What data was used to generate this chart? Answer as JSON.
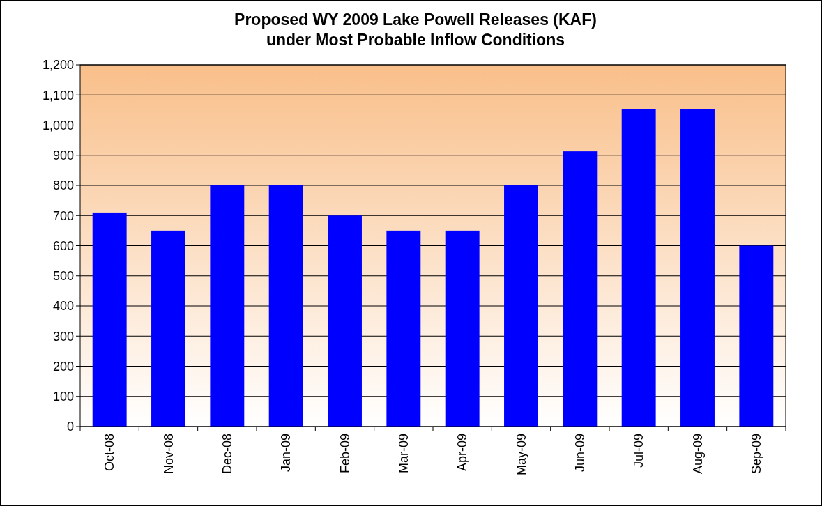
{
  "chart_data": {
    "type": "bar",
    "title": "Proposed WY 2009 Lake Powell Releases (KAF)\nunder Most Probable Inflow Conditions",
    "categories": [
      "Oct-08",
      "Nov-08",
      "Dec-08",
      "Jan-09",
      "Feb-09",
      "Mar-09",
      "Apr-09",
      "May-09",
      "Jun-09",
      "Jul-09",
      "Aug-09",
      "Sep-09"
    ],
    "values": [
      710,
      650,
      800,
      800,
      700,
      650,
      650,
      800,
      913,
      1053,
      1053,
      600
    ],
    "color": "#0000ff",
    "ylim": [
      0,
      1200
    ],
    "yticks": [
      0,
      100,
      200,
      300,
      400,
      500,
      600,
      700,
      800,
      900,
      {
        "value": 1000,
        "label": "1,000"
      },
      {
        "value": 1100,
        "label": "1,100"
      },
      {
        "value": 1200,
        "label": "1,200"
      }
    ],
    "grid": "y"
  }
}
